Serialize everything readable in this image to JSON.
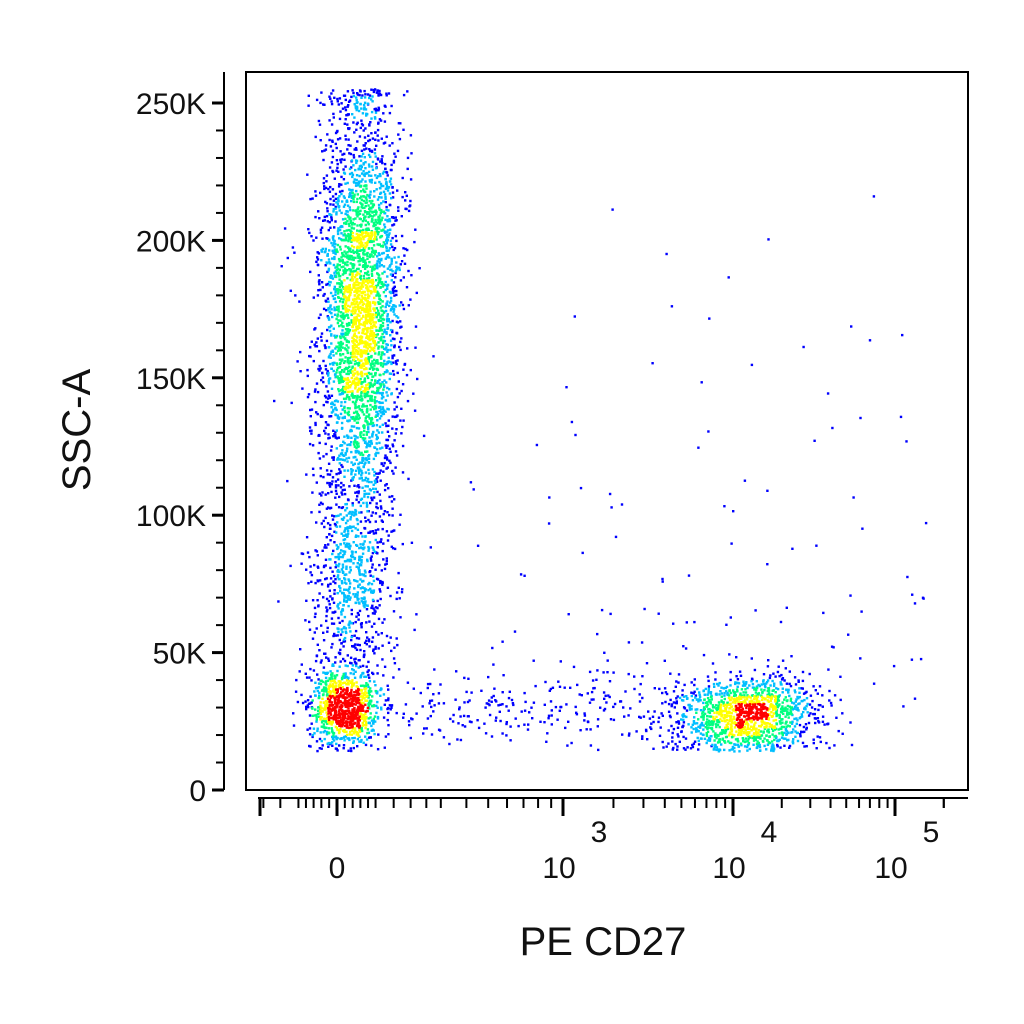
{
  "chart_data": {
    "type": "scatter",
    "title": "",
    "xlabel": "PE CD27",
    "ylabel": "SSC-A",
    "x_scale": "biexponential",
    "y_scale": "linear",
    "ylim": [
      0,
      262144
    ],
    "xlim": [
      -400,
      200000
    ],
    "grid": false,
    "legend": "none",
    "color_map": [
      "#0000ff",
      "#00bfff",
      "#00ff80",
      "#ffff00",
      "#ff0000"
    ],
    "y_ticks": [
      {
        "value": 0,
        "label": "0"
      },
      {
        "value": 50000,
        "label": "50K"
      },
      {
        "value": 100000,
        "label": "100K"
      },
      {
        "value": 150000,
        "label": "150K"
      },
      {
        "value": 200000,
        "label": "200K"
      },
      {
        "value": 250000,
        "label": "250K"
      }
    ],
    "x_ticks": [
      {
        "value": 0,
        "base": "0",
        "exp": ""
      },
      {
        "value": 1000,
        "base": "10",
        "exp": "3"
      },
      {
        "value": 10000,
        "base": "10",
        "exp": "4"
      },
      {
        "value": 100000,
        "base": "10",
        "exp": "5"
      }
    ],
    "populations": [
      {
        "name": "",
        "cx": 60,
        "cy": 175000,
        "sx": 55,
        "sy": 38000,
        "count": 3200
      },
      {
        "name": "",
        "cx": 20,
        "cy": 30000,
        "sx": 45,
        "sy": 7000,
        "count": 900
      },
      {
        "name": "",
        "cx": 40,
        "cy": 75000,
        "sx": 55,
        "sy": 22000,
        "count": 700
      },
      {
        "name": "",
        "cx": 12000,
        "cy": 27000,
        "sx_log": 0.22,
        "sy": 7000,
        "count": 1300
      },
      {
        "name": "",
        "cx": 800,
        "cy": 29000,
        "sx_log": 0.55,
        "sy": 7000,
        "count": 250
      }
    ]
  }
}
